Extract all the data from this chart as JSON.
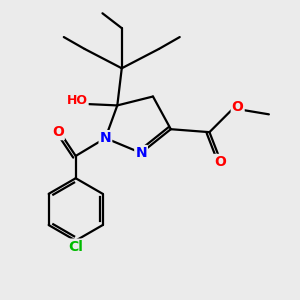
{
  "bg_color": "#ebebeb",
  "atom_colors": {
    "C": "#000000",
    "N": "#0000ff",
    "O": "#ff0000",
    "Cl": "#00bb00",
    "H": "#888888"
  },
  "bond_color": "#000000",
  "bond_width": 1.6,
  "font_size_atom": 10,
  "font_size_small": 9
}
